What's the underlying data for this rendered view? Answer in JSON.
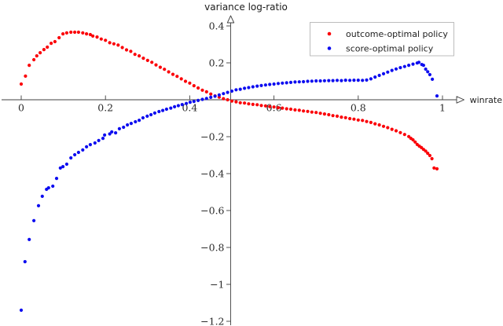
{
  "chart_data": {
    "type": "scatter",
    "title": "variance log-ratio",
    "xlabel": "winrate",
    "ylabel": "variance log-ratio",
    "xlim": [
      0,
      1
    ],
    "ylim": [
      -1.25,
      0.45
    ],
    "grid": false,
    "axis_style": "middle-arrows",
    "legend_position": "top-right",
    "colors": {
      "axis": "#3f3f3f",
      "tick_label": "#2a2a2a",
      "legend_border": "#b6b6b6",
      "outcome_series": "#fb0007",
      "score_series": "#0d0df0"
    },
    "x_ticks": [
      {
        "v": 0.0,
        "label": "0"
      },
      {
        "v": 0.2,
        "label": "0.2"
      },
      {
        "v": 0.4,
        "label": "0.4"
      },
      {
        "v": 0.6,
        "label": "0.6"
      },
      {
        "v": 0.8,
        "label": "0.8"
      },
      {
        "v": 1.0,
        "label": "1"
      }
    ],
    "y_ticks": [
      {
        "v": 0.4,
        "label": "0.4"
      },
      {
        "v": 0.2,
        "label": "0.2"
      },
      {
        "v": -0.2,
        "label": "−0.2"
      },
      {
        "v": -0.4,
        "label": "−0.4"
      },
      {
        "v": -0.6,
        "label": "−0.6"
      },
      {
        "v": -0.8,
        "label": "−0.8"
      },
      {
        "v": -1.0,
        "label": "−1"
      },
      {
        "v": -1.2,
        "label": "−1.2"
      }
    ],
    "series": [
      {
        "name": "outcome-optimal policy",
        "color": "#fb0007",
        "marker": "circle",
        "points": [
          [
            0.0,
            0.085
          ],
          [
            0.01,
            0.128
          ],
          [
            0.019,
            0.187
          ],
          [
            0.03,
            0.217
          ],
          [
            0.037,
            0.238
          ],
          [
            0.045,
            0.255
          ],
          [
            0.054,
            0.272
          ],
          [
            0.062,
            0.285
          ],
          [
            0.071,
            0.306
          ],
          [
            0.08,
            0.315
          ],
          [
            0.09,
            0.336
          ],
          [
            0.099,
            0.357
          ],
          [
            0.108,
            0.362
          ],
          [
            0.118,
            0.366
          ],
          [
            0.127,
            0.366
          ],
          [
            0.136,
            0.366
          ],
          [
            0.146,
            0.362
          ],
          [
            0.155,
            0.357
          ],
          [
            0.164,
            0.353
          ],
          [
            0.17,
            0.345
          ],
          [
            0.18,
            0.34
          ],
          [
            0.19,
            0.329
          ],
          [
            0.2,
            0.322
          ],
          [
            0.21,
            0.309
          ],
          [
            0.22,
            0.303
          ],
          [
            0.23,
            0.296
          ],
          [
            0.24,
            0.283
          ],
          [
            0.25,
            0.27
          ],
          [
            0.26,
            0.262
          ],
          [
            0.27,
            0.246
          ],
          [
            0.28,
            0.238
          ],
          [
            0.29,
            0.225
          ],
          [
            0.3,
            0.213
          ],
          [
            0.31,
            0.203
          ],
          [
            0.32,
            0.189
          ],
          [
            0.33,
            0.176
          ],
          [
            0.34,
            0.165
          ],
          [
            0.35,
            0.151
          ],
          [
            0.36,
            0.138
          ],
          [
            0.37,
            0.127
          ],
          [
            0.38,
            0.113
          ],
          [
            0.39,
            0.1
          ],
          [
            0.4,
            0.09
          ],
          [
            0.41,
            0.076
          ],
          [
            0.42,
            0.064
          ],
          [
            0.43,
            0.052
          ],
          [
            0.44,
            0.043
          ],
          [
            0.45,
            0.031
          ],
          [
            0.46,
            0.021
          ],
          [
            0.47,
            0.014
          ],
          [
            0.48,
            0.006
          ],
          [
            0.49,
            0.0
          ],
          [
            0.5,
            -0.007
          ],
          [
            0.51,
            -0.011
          ],
          [
            0.52,
            -0.016
          ],
          [
            0.53,
            -0.018
          ],
          [
            0.54,
            -0.022
          ],
          [
            0.55,
            -0.025
          ],
          [
            0.56,
            -0.027
          ],
          [
            0.57,
            -0.031
          ],
          [
            0.58,
            -0.033
          ],
          [
            0.59,
            -0.037
          ],
          [
            0.6,
            -0.039
          ],
          [
            0.61,
            -0.043
          ],
          [
            0.62,
            -0.045
          ],
          [
            0.63,
            -0.049
          ],
          [
            0.64,
            -0.051
          ],
          [
            0.65,
            -0.055
          ],
          [
            0.66,
            -0.057
          ],
          [
            0.67,
            -0.061
          ],
          [
            0.68,
            -0.063
          ],
          [
            0.69,
            -0.067
          ],
          [
            0.7,
            -0.069
          ],
          [
            0.71,
            -0.073
          ],
          [
            0.72,
            -0.077
          ],
          [
            0.73,
            -0.081
          ],
          [
            0.74,
            -0.086
          ],
          [
            0.75,
            -0.089
          ],
          [
            0.76,
            -0.094
          ],
          [
            0.77,
            -0.097
          ],
          [
            0.78,
            -0.102
          ],
          [
            0.79,
            -0.105
          ],
          [
            0.8,
            -0.11
          ],
          [
            0.81,
            -0.112
          ],
          [
            0.82,
            -0.118
          ],
          [
            0.83,
            -0.123
          ],
          [
            0.84,
            -0.13
          ],
          [
            0.85,
            -0.136
          ],
          [
            0.86,
            -0.144
          ],
          [
            0.87,
            -0.151
          ],
          [
            0.88,
            -0.16
          ],
          [
            0.89,
            -0.168
          ],
          [
            0.9,
            -0.178
          ],
          [
            0.91,
            -0.188
          ],
          [
            0.92,
            -0.199
          ],
          [
            0.925,
            -0.209
          ],
          [
            0.93,
            -0.217
          ],
          [
            0.935,
            -0.229
          ],
          [
            0.94,
            -0.242
          ],
          [
            0.945,
            -0.251
          ],
          [
            0.95,
            -0.259
          ],
          [
            0.955,
            -0.269
          ],
          [
            0.96,
            -0.278
          ],
          [
            0.965,
            -0.29
          ],
          [
            0.97,
            -0.302
          ],
          [
            0.975,
            -0.319
          ],
          [
            0.98,
            -0.37
          ],
          [
            0.987,
            -0.374
          ]
        ]
      },
      {
        "name": "score-optimal policy",
        "color": "#0d0df0",
        "marker": "circle",
        "points": [
          [
            0.0,
            -1.14
          ],
          [
            0.009,
            -0.877
          ],
          [
            0.019,
            -0.757
          ],
          [
            0.03,
            -0.655
          ],
          [
            0.041,
            -0.574
          ],
          [
            0.05,
            -0.523
          ],
          [
            0.06,
            -0.485
          ],
          [
            0.065,
            -0.477
          ],
          [
            0.075,
            -0.468
          ],
          [
            0.084,
            -0.426
          ],
          [
            0.093,
            -0.37
          ],
          [
            0.099,
            -0.362
          ],
          [
            0.108,
            -0.349
          ],
          [
            0.118,
            -0.315
          ],
          [
            0.127,
            -0.298
          ],
          [
            0.136,
            -0.285
          ],
          [
            0.146,
            -0.272
          ],
          [
            0.155,
            -0.255
          ],
          [
            0.164,
            -0.243
          ],
          [
            0.175,
            -0.234
          ],
          [
            0.184,
            -0.221
          ],
          [
            0.194,
            -0.209
          ],
          [
            0.198,
            -0.191
          ],
          [
            0.21,
            -0.185
          ],
          [
            0.215,
            -0.174
          ],
          [
            0.224,
            -0.179
          ],
          [
            0.233,
            -0.157
          ],
          [
            0.243,
            -0.149
          ],
          [
            0.252,
            -0.136
          ],
          [
            0.261,
            -0.128
          ],
          [
            0.271,
            -0.119
          ],
          [
            0.28,
            -0.111
          ],
          [
            0.289,
            -0.098
          ],
          [
            0.299,
            -0.089
          ],
          [
            0.308,
            -0.081
          ],
          [
            0.317,
            -0.072
          ],
          [
            0.327,
            -0.064
          ],
          [
            0.336,
            -0.058
          ],
          [
            0.345,
            -0.051
          ],
          [
            0.355,
            -0.045
          ],
          [
            0.364,
            -0.038
          ],
          [
            0.373,
            -0.032
          ],
          [
            0.382,
            -0.026
          ],
          [
            0.392,
            -0.02
          ],
          [
            0.401,
            -0.013
          ],
          [
            0.41,
            -0.009
          ],
          [
            0.42,
            -0.004
          ],
          [
            0.43,
            0.002
          ],
          [
            0.44,
            0.007
          ],
          [
            0.45,
            0.013
          ],
          [
            0.46,
            0.019
          ],
          [
            0.47,
            0.026
          ],
          [
            0.48,
            0.033
          ],
          [
            0.49,
            0.04
          ],
          [
            0.5,
            0.047
          ],
          [
            0.51,
            0.054
          ],
          [
            0.52,
            0.057
          ],
          [
            0.53,
            0.062
          ],
          [
            0.54,
            0.066
          ],
          [
            0.55,
            0.07
          ],
          [
            0.56,
            0.074
          ],
          [
            0.57,
            0.077
          ],
          [
            0.58,
            0.08
          ],
          [
            0.59,
            0.083
          ],
          [
            0.6,
            0.085
          ],
          [
            0.61,
            0.088
          ],
          [
            0.62,
            0.09
          ],
          [
            0.63,
            0.092
          ],
          [
            0.64,
            0.094
          ],
          [
            0.65,
            0.096
          ],
          [
            0.66,
            0.097
          ],
          [
            0.67,
            0.098
          ],
          [
            0.68,
            0.1
          ],
          [
            0.69,
            0.101
          ],
          [
            0.7,
            0.102
          ],
          [
            0.71,
            0.102
          ],
          [
            0.72,
            0.103
          ],
          [
            0.73,
            0.104
          ],
          [
            0.74,
            0.104
          ],
          [
            0.75,
            0.105
          ],
          [
            0.76,
            0.104
          ],
          [
            0.77,
            0.106
          ],
          [
            0.78,
            0.105
          ],
          [
            0.79,
            0.106
          ],
          [
            0.8,
            0.106
          ],
          [
            0.81,
            0.105
          ],
          [
            0.82,
            0.107
          ],
          [
            0.83,
            0.113
          ],
          [
            0.84,
            0.123
          ],
          [
            0.85,
            0.132
          ],
          [
            0.86,
            0.141
          ],
          [
            0.87,
            0.15
          ],
          [
            0.88,
            0.159
          ],
          [
            0.89,
            0.167
          ],
          [
            0.9,
            0.174
          ],
          [
            0.91,
            0.18
          ],
          [
            0.92,
            0.187
          ],
          [
            0.93,
            0.193
          ],
          [
            0.94,
            0.199
          ],
          [
            0.944,
            0.203
          ],
          [
            0.951,
            0.191
          ],
          [
            0.955,
            0.187
          ],
          [
            0.96,
            0.166
          ],
          [
            0.965,
            0.152
          ],
          [
            0.97,
            0.136
          ],
          [
            0.976,
            0.111
          ],
          [
            0.987,
            0.021
          ]
        ]
      }
    ]
  }
}
